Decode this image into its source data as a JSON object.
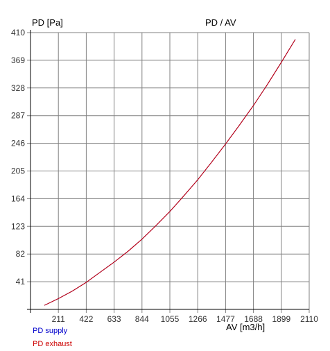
{
  "chart_data": {
    "type": "line",
    "title": "PD / AV",
    "ylabel": "PD [Pa]",
    "xlabel": "AV [m3/h]",
    "xlim": [
      0,
      2110
    ],
    "ylim": [
      0,
      410
    ],
    "x_ticks": [
      211,
      422,
      633,
      844,
      1055,
      1266,
      1477,
      1688,
      1899,
      2110
    ],
    "y_ticks": [
      41,
      82,
      123,
      164,
      205,
      246,
      287,
      328,
      369,
      410
    ],
    "grid": true,
    "legend_position": "bottom-left",
    "series": [
      {
        "name": "PD supply",
        "color": "#0000cc",
        "x": [
          105,
          211,
          316,
          422,
          527,
          633,
          738,
          844,
          949,
          1055,
          1160,
          1266,
          1371,
          1477,
          1582,
          1688,
          1793,
          1899,
          2005
        ],
        "y": [
          6,
          16,
          27,
          40,
          55,
          70,
          86,
          104,
          124,
          145,
          168,
          192,
          218,
          245,
          273,
          302,
          333,
          366,
          400
        ]
      },
      {
        "name": "PD exhaust",
        "color": "#cc0000",
        "x": [
          105,
          211,
          316,
          422,
          527,
          633,
          738,
          844,
          949,
          1055,
          1160,
          1266,
          1371,
          1477,
          1582,
          1688,
          1793,
          1899,
          2005
        ],
        "y": [
          6,
          16,
          27,
          40,
          55,
          70,
          86,
          104,
          124,
          145,
          168,
          192,
          218,
          245,
          273,
          302,
          333,
          366,
          400
        ]
      }
    ]
  }
}
